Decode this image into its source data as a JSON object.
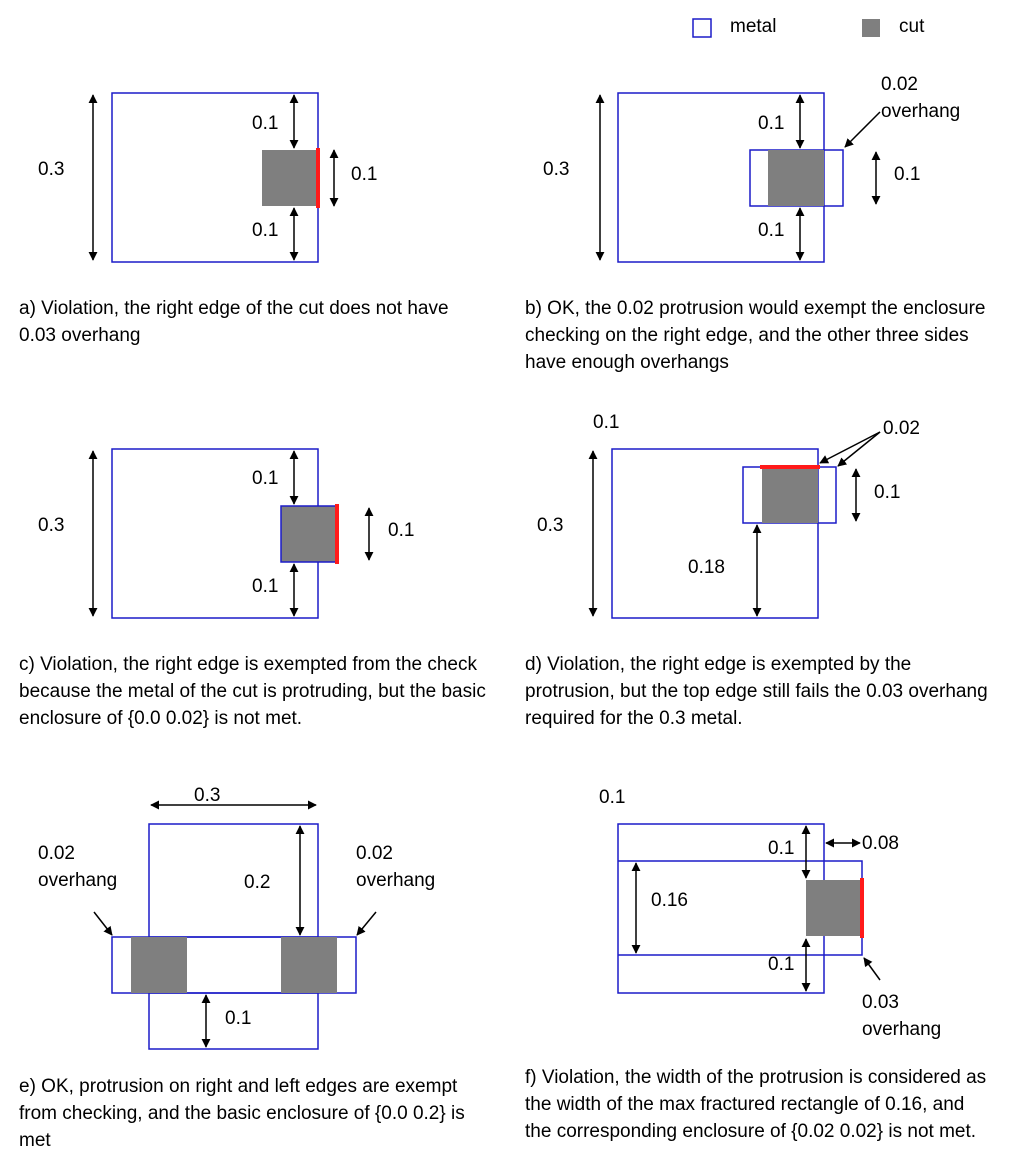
{
  "legend": {
    "metal": "metal",
    "cut": "cut"
  },
  "panels": {
    "a": {
      "labels": [
        "0.3",
        "0.1",
        "0.1",
        "0.1"
      ],
      "caption": "a) Violation, the right edge of the cut does not have 0.03 overhang"
    },
    "b": {
      "labels": [
        "0.3",
        "0.1",
        "0.1",
        "0.1",
        "0.02",
        "overhang"
      ],
      "caption": "b) OK, the 0.02 protrusion would exempt the enclosure checking on the right edge, and the other three sides have enough overhangs"
    },
    "c": {
      "labels": [
        "0.3",
        "0.1",
        "0.1",
        "0.1"
      ],
      "caption": "c) Violation, the right edge is exempted from the check because the metal of the cut is protruding, but the basic enclosure of {0.0 0.02} is not met."
    },
    "d": {
      "labels": [
        "0.1",
        "0.3",
        "0.02",
        "0.1",
        "0.18"
      ],
      "caption": "d) Violation, the right edge is exempted by the protrusion, but the top edge still fails the 0.03 overhang required for the 0.3 metal."
    },
    "e": {
      "labels": [
        "0.3",
        "0.2",
        "0.1",
        "0.02",
        "overhang",
        "0.02",
        "overhang"
      ],
      "caption": "e) OK, protrusion on right and left edges are exempt from checking, and the basic enclosure of {0.0 0.2} is met"
    },
    "f": {
      "labels": [
        "0.1",
        "0.1",
        "0.08",
        "0.16",
        "0.1",
        "0.03",
        "overhang"
      ],
      "caption": "f) Violation, the width of the protrusion is considered as the width of the max fractured rectangle of 0.16, and the corresponding enclosure of {0.02 0.02} is not met."
    }
  }
}
